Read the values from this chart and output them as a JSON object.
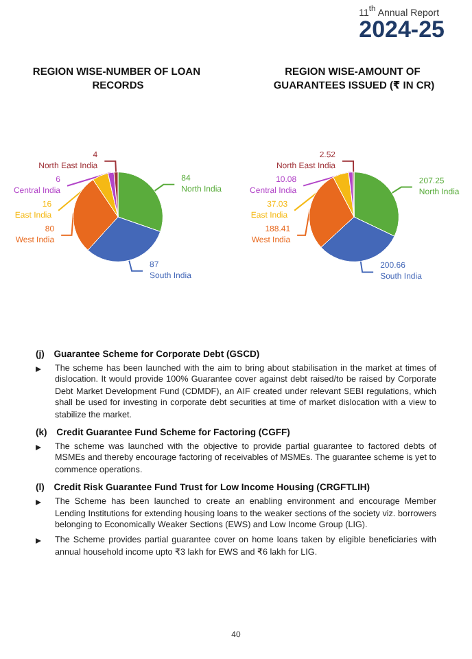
{
  "chart_data": [
    {
      "type": "other",
      "subtitle": "11$^{th}$ Annual Report",
      "title": "2024-25"
    },
    {
      "type": "pie",
      "title": "REGION WISE-NUMBER OF LOAN RECORDS",
      "categories": [
        "North India",
        "South India",
        "West India",
        "East India",
        "Central India",
        "North East India"
      ],
      "values": [
        84,
        87,
        80,
        16,
        6,
        4
      ],
      "colors": [
        "#5aac3c",
        "#4468b8",
        "#e8691e",
        "#f5b915",
        "#b245c8",
        "#a0343a"
      ],
      "data_labels": true
    },
    {
      "type": "pie",
      "title": "REGION WISE-AMOUNT OF GUARANTEES ISSUED (₹ IN CR)",
      "categories": [
        "North India",
        "South India",
        "West India",
        "East India",
        "Central India",
        "North East India"
      ],
      "values": [
        207.25,
        200.66,
        188.41,
        37.03,
        10.08,
        2.52
      ],
      "colors": [
        "#5aac3c",
        "#4468b8",
        "#e8691e",
        "#f5b915",
        "#b245c8",
        "#a0343a"
      ],
      "data_labels": true
    },
    {
      "type": "other",
      "title": "(j) Guarantee Scheme for Corporate Debt (GSCD)",
      "annotations": [
        "The scheme has been launched with the aim to bring about stabilisation in the market at times of dislocation. It would provide 100% Guarantee cover against debt raised/to be raised by Corporate Debt Market Development Fund (CDMDF), an AIF created under relevant SEBI regulations, which shall be used for investing in corporate debt securities at time of market dislocation with a view to stabilize the market."
      ]
    },
    {
      "type": "other",
      "title": "(k) Credit Guarantee Fund Scheme for Factoring (CGFF)",
      "annotations": [
        "The scheme was launched with the objective to provide partial guarantee to factored debts of MSMEs and thereby encourage factoring of receivables of MSMEs. The guarantee scheme is yet to commence operations."
      ]
    },
    {
      "type": "other",
      "title": "(l) Credit Risk Guarantee Fund Trust for Low Income Housing (CRGFTLIH)",
      "annotations": [
        "The Scheme has been launched to create an enabling environment and encourage Member Lending Institutions for extending housing loans to the weaker sections of the society viz. borrowers belonging to Economically Weaker Sections (EWS) and Low Income Group (LIG).",
        "The Scheme provides partial guarantee cover on home loans taken by eligible beneficiaries with annual household income upto ₹3 lakh for EWS and ₹6 lakh for LIG."
      ]
    },
    {
      "type": "other",
      "annotations": [
        "40"
      ]
    }
  ]
}
